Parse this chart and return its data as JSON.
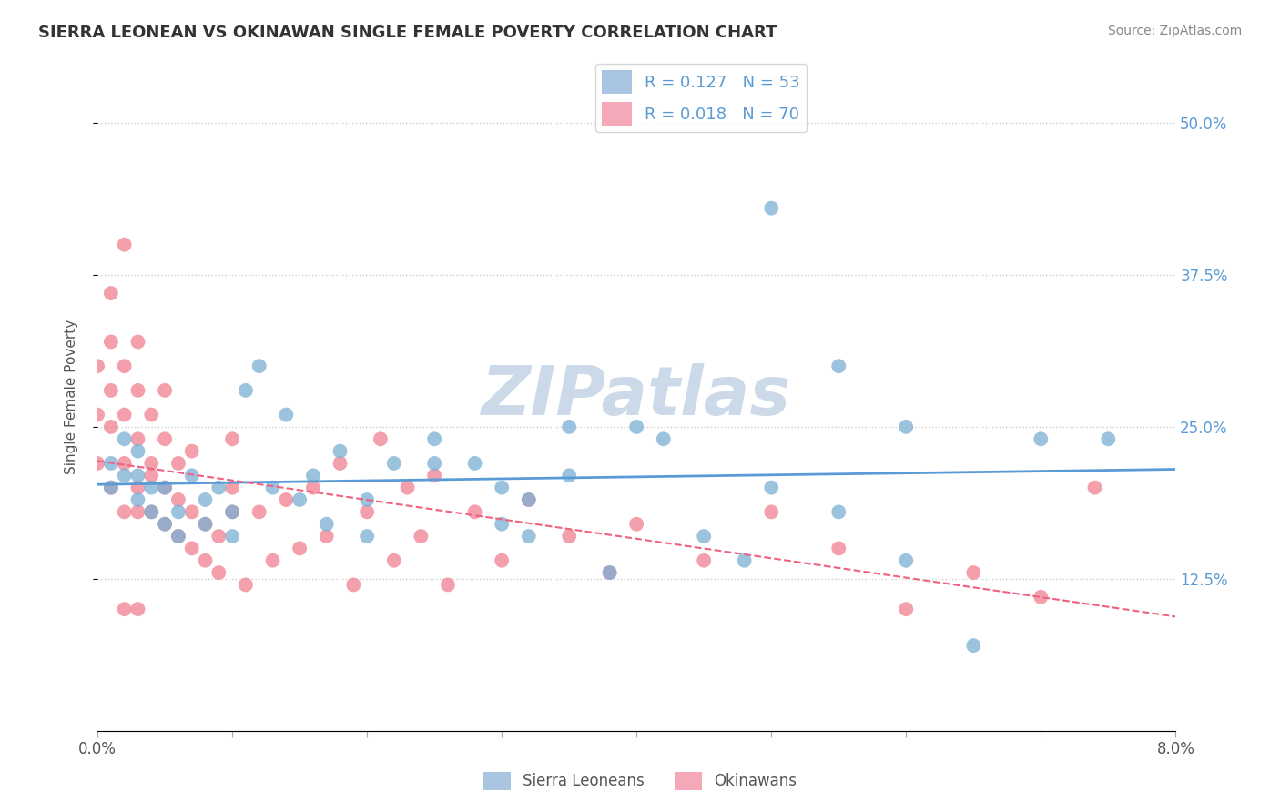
{
  "title": "SIERRA LEONEAN VS OKINAWAN SINGLE FEMALE POVERTY CORRELATION CHART",
  "source": "Source: ZipAtlas.com",
  "ylabel": "Single Female Poverty",
  "yticks": [
    "12.5%",
    "25.0%",
    "37.5%",
    "50.0%"
  ],
  "ytick_values": [
    0.125,
    0.25,
    0.375,
    0.5
  ],
  "xlim": [
    0.0,
    0.08
  ],
  "ylim": [
    0.0,
    0.55
  ],
  "legend_color1": "#a8c4e0",
  "legend_color2": "#f4a8b8",
  "scatter_color1": "#7bafd4",
  "scatter_color2": "#f08090",
  "line_color1": "#5b9bd5",
  "line_color2": "#f06080",
  "watermark": "ZIPatlas",
  "watermark_color": "#ccd9e8",
  "sierra_x": [
    0.001,
    0.001,
    0.002,
    0.002,
    0.003,
    0.003,
    0.003,
    0.004,
    0.004,
    0.005,
    0.005,
    0.006,
    0.006,
    0.007,
    0.008,
    0.008,
    0.009,
    0.01,
    0.01,
    0.011,
    0.012,
    0.013,
    0.014,
    0.015,
    0.016,
    0.017,
    0.018,
    0.02,
    0.022,
    0.025,
    0.028,
    0.03,
    0.032,
    0.035,
    0.038,
    0.04,
    0.042,
    0.045,
    0.048,
    0.05,
    0.055,
    0.06,
    0.065,
    0.07,
    0.02,
    0.025,
    0.03,
    0.032,
    0.035,
    0.05,
    0.055,
    0.06,
    0.075
  ],
  "sierra_y": [
    0.22,
    0.2,
    0.24,
    0.21,
    0.19,
    0.21,
    0.23,
    0.18,
    0.2,
    0.17,
    0.2,
    0.18,
    0.16,
    0.21,
    0.17,
    0.19,
    0.2,
    0.16,
    0.18,
    0.28,
    0.3,
    0.2,
    0.26,
    0.19,
    0.21,
    0.17,
    0.23,
    0.16,
    0.22,
    0.24,
    0.22,
    0.17,
    0.19,
    0.21,
    0.13,
    0.25,
    0.24,
    0.16,
    0.14,
    0.43,
    0.3,
    0.14,
    0.07,
    0.24,
    0.19,
    0.22,
    0.2,
    0.16,
    0.25,
    0.2,
    0.18,
    0.25,
    0.24
  ],
  "okinawan_x": [
    0.0,
    0.0,
    0.0,
    0.001,
    0.001,
    0.001,
    0.001,
    0.001,
    0.002,
    0.002,
    0.002,
    0.002,
    0.002,
    0.003,
    0.003,
    0.003,
    0.003,
    0.003,
    0.004,
    0.004,
    0.004,
    0.004,
    0.005,
    0.005,
    0.005,
    0.005,
    0.006,
    0.006,
    0.006,
    0.007,
    0.007,
    0.007,
    0.008,
    0.008,
    0.009,
    0.009,
    0.01,
    0.01,
    0.01,
    0.011,
    0.012,
    0.013,
    0.014,
    0.015,
    0.016,
    0.017,
    0.018,
    0.019,
    0.02,
    0.021,
    0.022,
    0.023,
    0.024,
    0.025,
    0.026,
    0.028,
    0.03,
    0.032,
    0.035,
    0.038,
    0.04,
    0.045,
    0.05,
    0.055,
    0.06,
    0.065,
    0.07,
    0.074,
    0.002,
    0.003
  ],
  "okinawan_y": [
    0.22,
    0.26,
    0.3,
    0.25,
    0.28,
    0.32,
    0.2,
    0.36,
    0.22,
    0.26,
    0.3,
    0.18,
    0.4,
    0.2,
    0.24,
    0.28,
    0.32,
    0.18,
    0.18,
    0.22,
    0.26,
    0.21,
    0.17,
    0.2,
    0.24,
    0.28,
    0.16,
    0.19,
    0.22,
    0.15,
    0.18,
    0.23,
    0.14,
    0.17,
    0.13,
    0.16,
    0.2,
    0.24,
    0.18,
    0.12,
    0.18,
    0.14,
    0.19,
    0.15,
    0.2,
    0.16,
    0.22,
    0.12,
    0.18,
    0.24,
    0.14,
    0.2,
    0.16,
    0.21,
    0.12,
    0.18,
    0.14,
    0.19,
    0.16,
    0.13,
    0.17,
    0.14,
    0.18,
    0.15,
    0.1,
    0.13,
    0.11,
    0.2,
    0.1,
    0.1
  ]
}
